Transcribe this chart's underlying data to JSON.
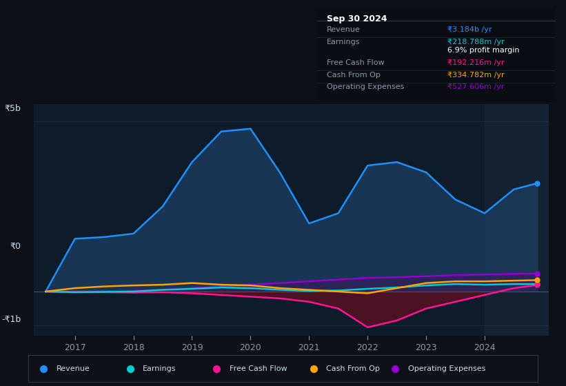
{
  "background_color": "#0d1117",
  "plot_bg_color": "#0d1b2a",
  "grid_color": "#1e2d3d",
  "ylabel_5b": "₹5b",
  "ylabel_0": "₹0",
  "ylabel_neg1b": "-₹1b",
  "ylim": [
    -1300000000.0,
    5500000000.0
  ],
  "xlim_start": 2016.3,
  "xlim_end": 2025.1,
  "xticks": [
    2017,
    2018,
    2019,
    2020,
    2021,
    2022,
    2023,
    2024
  ],
  "colors": {
    "revenue": "#1e90ff",
    "earnings": "#00ced1",
    "free_cash_flow": "#ff1493",
    "cash_from_op": "#ffa500",
    "operating_expenses": "#9400d3"
  },
  "legend_items": [
    {
      "label": "Revenue",
      "color": "#1e90ff"
    },
    {
      "label": "Earnings",
      "color": "#00ced1"
    },
    {
      "label": "Free Cash Flow",
      "color": "#ff1493"
    },
    {
      "label": "Cash From Op",
      "color": "#ffa500"
    },
    {
      "label": "Operating Expenses",
      "color": "#9400d3"
    }
  ],
  "info_box": {
    "title": "Sep 30 2024",
    "rows": [
      {
        "label": "Revenue",
        "value": "₹3.184b /yr",
        "value_color": "#1e90ff"
      },
      {
        "label": "Earnings",
        "value": "₹218.788m /yr",
        "value_color": "#00ced1"
      },
      {
        "label": "",
        "value": "6.9% profit margin",
        "value_color": "#ffffff"
      },
      {
        "label": "Free Cash Flow",
        "value": "₹192.216m /yr",
        "value_color": "#ff1493"
      },
      {
        "label": "Cash From Op",
        "value": "₹334.782m /yr",
        "value_color": "#ffa500"
      },
      {
        "label": "Operating Expenses",
        "value": "₹527.606m /yr",
        "value_color": "#9400d3"
      }
    ]
  },
  "revenue": {
    "x": [
      2016.5,
      2017.0,
      2017.5,
      2018.0,
      2018.5,
      2019.0,
      2019.5,
      2020.0,
      2020.5,
      2021.0,
      2021.5,
      2022.0,
      2022.5,
      2023.0,
      2023.5,
      2024.0,
      2024.5,
      2024.9
    ],
    "y": [
      0,
      1550000000.0,
      1600000000.0,
      1700000000.0,
      2500000000.0,
      3800000000.0,
      4700000000.0,
      4780000000.0,
      3500000000.0,
      2000000000.0,
      2300000000.0,
      3700000000.0,
      3800000000.0,
      3500000000.0,
      2700000000.0,
      2300000000.0,
      3000000000.0,
      3180000000.0
    ]
  },
  "earnings": {
    "x": [
      2016.5,
      2017.0,
      2017.5,
      2018.0,
      2018.5,
      2019.0,
      2019.5,
      2020.0,
      2020.5,
      2021.0,
      2021.5,
      2022.0,
      2022.5,
      2023.0,
      2023.5,
      2024.0,
      2024.5,
      2024.9
    ],
    "y": [
      0,
      -20000000.0,
      -10000000.0,
      0.0,
      50000000.0,
      80000000.0,
      120000000.0,
      100000000.0,
      50000000.0,
      20000000.0,
      30000000.0,
      80000000.0,
      120000000.0,
      180000000.0,
      220000000.0,
      200000000.0,
      220000000.0,
      219000000.0
    ]
  },
  "free_cash_flow": {
    "x": [
      2016.5,
      2017.0,
      2017.5,
      2018.0,
      2018.5,
      2019.0,
      2019.5,
      2020.0,
      2020.5,
      2021.0,
      2021.5,
      2022.0,
      2022.5,
      2023.0,
      2023.5,
      2024.0,
      2024.5,
      2024.9
    ],
    "y": [
      0,
      -10000000.0,
      -20000000.0,
      -30000000.0,
      -20000000.0,
      -50000000.0,
      -100000000.0,
      -150000000.0,
      -200000000.0,
      -300000000.0,
      -500000000.0,
      -1050000000.0,
      -850000000.0,
      -500000000.0,
      -300000000.0,
      -100000000.0,
      100000000.0,
      192000000.0
    ]
  },
  "cash_from_op": {
    "x": [
      2016.5,
      2017.0,
      2017.5,
      2018.0,
      2018.5,
      2019.0,
      2019.5,
      2020.0,
      2020.5,
      2021.0,
      2021.5,
      2022.0,
      2022.5,
      2023.0,
      2023.5,
      2024.0,
      2024.5,
      2024.9
    ],
    "y": [
      0,
      100000000.0,
      150000000.0,
      180000000.0,
      200000000.0,
      250000000.0,
      200000000.0,
      180000000.0,
      100000000.0,
      50000000.0,
      0.0,
      -50000000.0,
      100000000.0,
      250000000.0,
      300000000.0,
      300000000.0,
      320000000.0,
      335000000.0
    ]
  },
  "operating_expenses": {
    "x": [
      2016.5,
      2017.0,
      2017.5,
      2018.0,
      2018.5,
      2019.0,
      2019.5,
      2020.0,
      2020.5,
      2021.0,
      2021.5,
      2022.0,
      2022.5,
      2023.0,
      2023.5,
      2024.0,
      2024.5,
      2024.9
    ],
    "y": [
      0,
      0.0,
      10000000.0,
      20000000.0,
      50000000.0,
      100000000.0,
      150000000.0,
      200000000.0,
      250000000.0,
      300000000.0,
      350000000.0,
      400000000.0,
      420000000.0,
      450000000.0,
      480000000.0,
      500000000.0,
      520000000.0,
      528000000.0
    ]
  },
  "shaded_region_start": 2024.0
}
